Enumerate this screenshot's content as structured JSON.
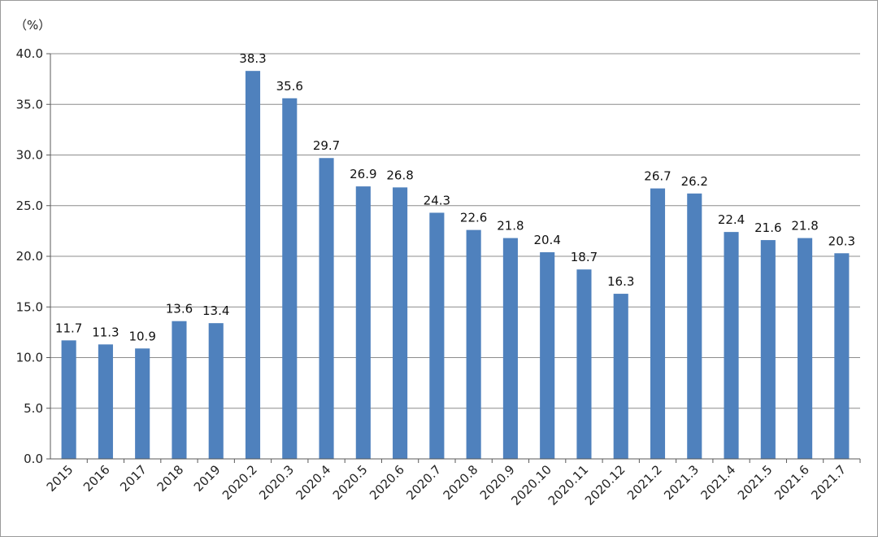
{
  "chart_data": {
    "type": "bar",
    "unit_label": "（%）",
    "categories": [
      "2015",
      "2016",
      "2017",
      "2018",
      "2019",
      "2020.2",
      "2020.3",
      "2020.4",
      "2020.5",
      "2020.6",
      "2020.7",
      "2020.8",
      "2020.9",
      "2020.10",
      "2020.11",
      "2020.12",
      "2021.2",
      "2021.3",
      "2021.4",
      "2021.5",
      "2021.6",
      "2021.7"
    ],
    "values": [
      11.7,
      11.3,
      10.9,
      13.6,
      13.4,
      38.3,
      35.6,
      29.7,
      26.9,
      26.8,
      24.3,
      22.6,
      21.8,
      20.4,
      18.7,
      16.3,
      26.7,
      26.2,
      22.4,
      21.6,
      21.8,
      20.3
    ],
    "value_labels": [
      "11.7",
      "11.3",
      "10.9",
      "13.6",
      "13.4",
      "38.3",
      "35.6",
      "29.7",
      "26.9",
      "26.8",
      "24.3",
      "22.6",
      "21.8",
      "20.4",
      "18.7",
      "16.3",
      "26.7",
      "26.2",
      "22.4",
      "21.6",
      "21.8",
      "20.3"
    ],
    "y_ticks": [
      "0.0",
      "5.0",
      "10.0",
      "15.0",
      "20.0",
      "25.0",
      "30.0",
      "35.0",
      "40.0"
    ],
    "ylim": [
      0,
      40
    ],
    "grid": true,
    "legend": "none",
    "bar_color": "#4f81bd",
    "grid_color": "#8c8c8c",
    "axis_color": "#595959"
  }
}
